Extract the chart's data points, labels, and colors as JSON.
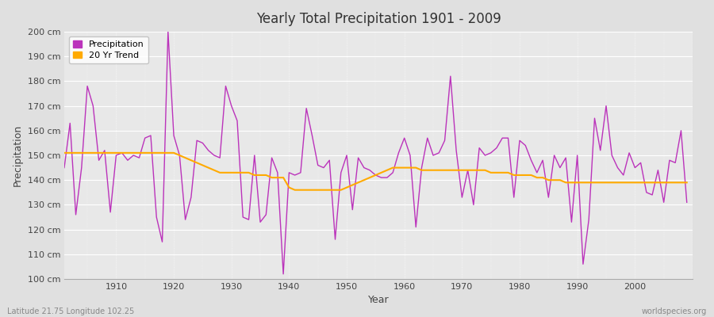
{
  "title": "Yearly Total Precipitation 1901 - 2009",
  "xlabel": "Year",
  "ylabel": "Precipitation",
  "subtitle_left": "Latitude 21.75 Longitude 102.25",
  "subtitle_right": "worldspecies.org",
  "ylim": [
    100,
    200
  ],
  "ytick_step": 10,
  "years": [
    1901,
    1902,
    1903,
    1904,
    1905,
    1906,
    1907,
    1908,
    1909,
    1910,
    1911,
    1912,
    1913,
    1914,
    1915,
    1916,
    1917,
    1918,
    1919,
    1920,
    1921,
    1922,
    1923,
    1924,
    1925,
    1926,
    1927,
    1928,
    1929,
    1930,
    1931,
    1932,
    1933,
    1934,
    1935,
    1936,
    1937,
    1938,
    1939,
    1940,
    1941,
    1942,
    1943,
    1944,
    1945,
    1946,
    1947,
    1948,
    1949,
    1950,
    1951,
    1952,
    1953,
    1954,
    1955,
    1956,
    1957,
    1958,
    1959,
    1960,
    1961,
    1962,
    1963,
    1964,
    1965,
    1966,
    1967,
    1968,
    1969,
    1970,
    1971,
    1972,
    1973,
    1974,
    1975,
    1976,
    1977,
    1978,
    1979,
    1980,
    1981,
    1982,
    1983,
    1984,
    1985,
    1986,
    1987,
    1988,
    1989,
    1990,
    1991,
    1992,
    1993,
    1994,
    1995,
    1996,
    1997,
    1998,
    1999,
    2000,
    2001,
    2002,
    2003,
    2004,
    2005,
    2006,
    2007,
    2008,
    2009
  ],
  "precipitation": [
    145,
    163,
    126,
    145,
    178,
    170,
    148,
    152,
    127,
    150,
    151,
    148,
    150,
    149,
    157,
    158,
    125,
    115,
    200,
    158,
    150,
    124,
    133,
    156,
    155,
    152,
    150,
    149,
    178,
    170,
    164,
    125,
    124,
    150,
    123,
    126,
    149,
    143,
    102,
    143,
    142,
    143,
    169,
    158,
    146,
    145,
    148,
    116,
    143,
    150,
    128,
    149,
    145,
    144,
    142,
    141,
    141,
    143,
    151,
    157,
    150,
    121,
    145,
    157,
    150,
    151,
    156,
    182,
    152,
    133,
    144,
    130,
    153,
    150,
    151,
    153,
    157,
    157,
    133,
    156,
    154,
    148,
    143,
    148,
    133,
    150,
    145,
    149,
    123,
    150,
    106,
    124,
    165,
    152,
    170,
    150,
    145,
    142,
    151,
    145,
    147,
    135,
    134,
    144,
    131,
    148,
    147,
    160,
    131
  ],
  "trend": [
    151,
    151,
    151,
    151,
    151,
    151,
    151,
    151,
    151,
    151,
    151,
    151,
    151,
    151,
    151,
    151,
    151,
    151,
    151,
    151,
    150,
    149,
    148,
    147,
    146,
    145,
    144,
    143,
    143,
    143,
    143,
    143,
    143,
    142,
    142,
    142,
    141,
    141,
    141,
    137,
    136,
    136,
    136,
    136,
    136,
    136,
    136,
    136,
    136,
    137,
    138,
    139,
    140,
    141,
    142,
    143,
    144,
    145,
    145,
    145,
    145,
    145,
    144,
    144,
    144,
    144,
    144,
    144,
    144,
    144,
    144,
    144,
    144,
    144,
    143,
    143,
    143,
    143,
    142,
    142,
    142,
    142,
    141,
    141,
    140,
    140,
    140,
    139,
    139,
    139,
    139,
    139,
    139,
    139,
    139,
    139,
    139,
    139,
    139,
    139,
    139,
    139,
    139,
    139,
    139,
    139,
    139,
    139,
    139
  ],
  "precip_color": "#bb33bb",
  "trend_color": "#ffaa00",
  "bg_color": "#e0e0e0",
  "plot_bg_color": "#e8e8e8",
  "grid_color": "#ffffff",
  "xtick_positions": [
    1910,
    1920,
    1930,
    1940,
    1950,
    1960,
    1970,
    1980,
    1990,
    2000
  ],
  "legend_marker_precip": "s",
  "legend_marker_trend": "s"
}
